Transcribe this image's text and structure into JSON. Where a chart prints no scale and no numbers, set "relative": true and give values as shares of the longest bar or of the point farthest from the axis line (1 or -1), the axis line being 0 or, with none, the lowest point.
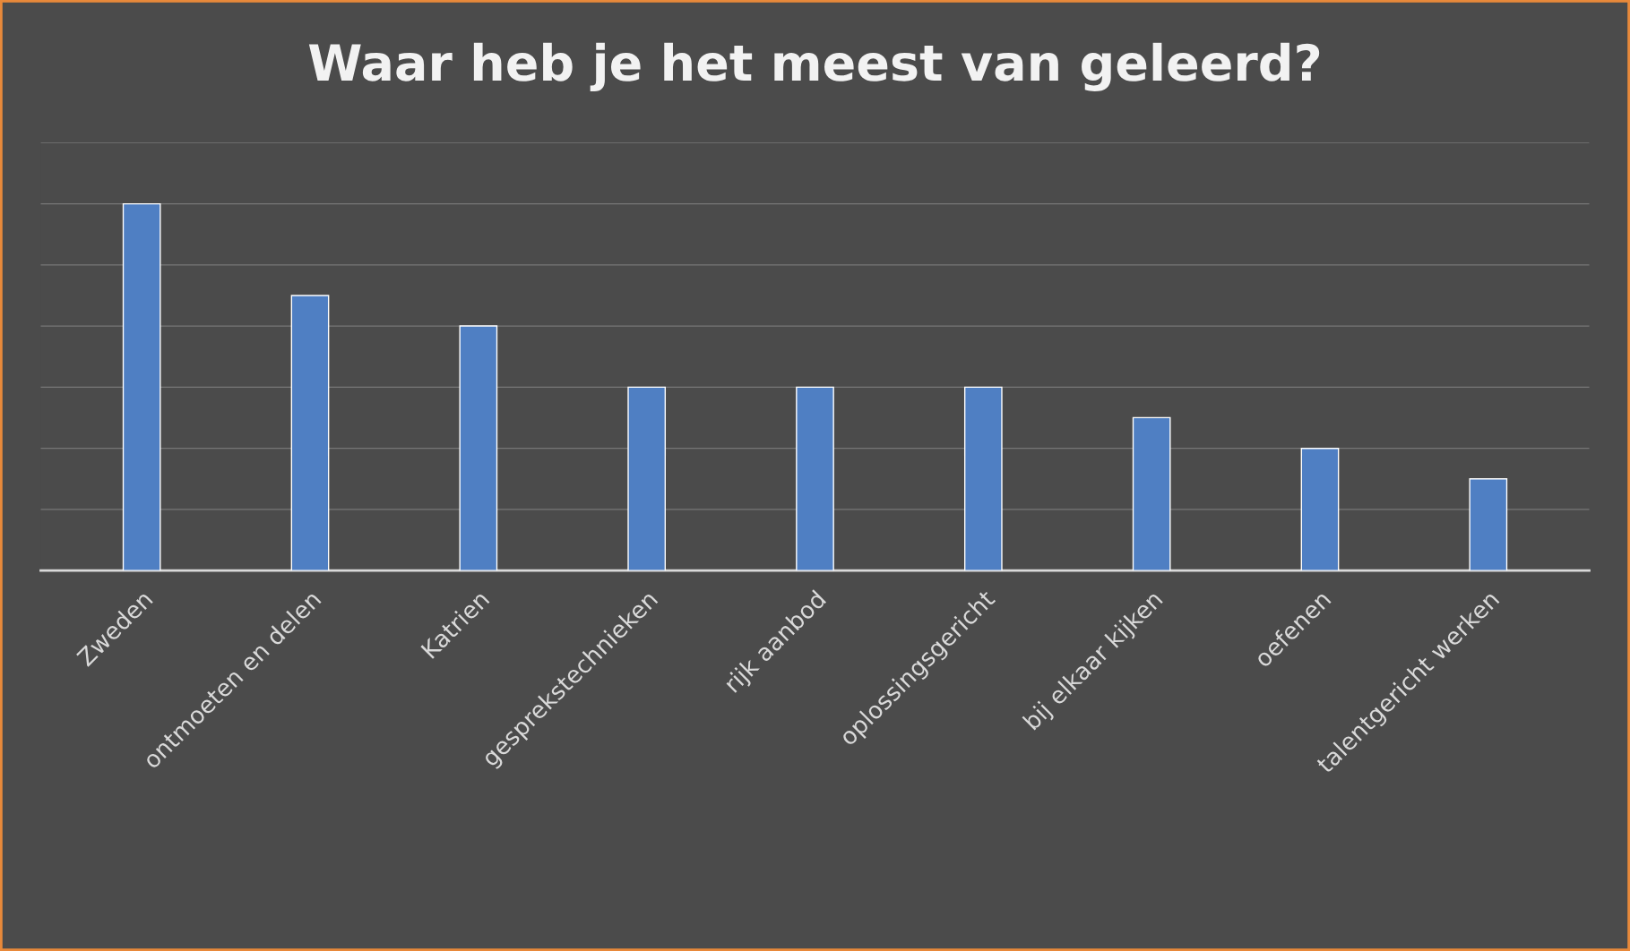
{
  "chart_data": {
    "type": "bar",
    "title": "Waar heb je het meest van geleerd?",
    "categories": [
      "Zweden",
      "ontmoeten en delen",
      "Katrien",
      "gesprekstechnieken",
      "rijk aanbod",
      "oplossingsgericht",
      "bij elkaar kijken",
      "oefenen",
      "talentgericht werken"
    ],
    "values": [
      1,
      0.75,
      0.667,
      0.5,
      0.5,
      0.5,
      0.417,
      0.333,
      0.25
    ],
    "color": "#4f7fc3",
    "relative": true,
    "grid": "y",
    "legend": false
  }
}
